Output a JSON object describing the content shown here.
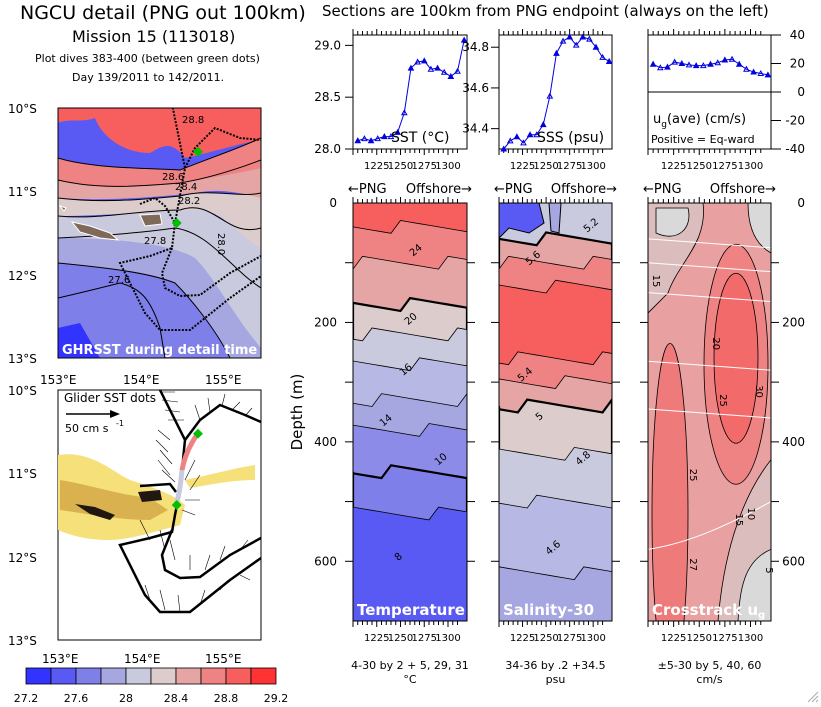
{
  "left_title": {
    "line1": "NGCU detail (PNG out 100km)",
    "line2": "Mission 15 (113018)",
    "line3": "Plot dives 383-400 (between green dots)",
    "line4": "Day 139/2011 to 142/2011."
  },
  "right_title": "Sections are 100km from PNG endpoint (always on the left)",
  "colors": {
    "blue_line": "#0000e0",
    "green_dot": "#00c000",
    "scale": [
      "#3333ff",
      "#5959f4",
      "#7f7fea",
      "#a6a6e0",
      "#c9cade",
      "#dccccc",
      "#e5a5a5",
      "#ef8282",
      "#f75e5e",
      "#ff3333"
    ]
  },
  "chart_data": [
    {
      "id": "sst-map",
      "type": "heatmap",
      "title": "GHRSST during detail time",
      "lat_ticks": [
        "10°S",
        "11°S",
        "12°S",
        "13°S"
      ],
      "lon_ticks": [
        "153°E",
        "154°E",
        "155°E"
      ],
      "contour_labels": [
        "28.8",
        "28.6",
        "28.4",
        "28.2",
        "28.0",
        "27.8",
        "27.6"
      ]
    },
    {
      "id": "glider-map",
      "type": "scatter",
      "title": "Glider SST dots",
      "scale_arrow_label": "50 cm s",
      "scale_arrow_exp": "-1",
      "lat_ticks": [
        "10°S",
        "11°S",
        "12°S",
        "13°S"
      ],
      "lon_ticks": [
        "153°E",
        "154°E",
        "155°E"
      ]
    },
    {
      "id": "colorbar",
      "type": "heatmap",
      "tick_labels": [
        "27.2",
        "27.6",
        "28",
        "28.4",
        "28.8",
        "29.2"
      ],
      "range": [
        27.2,
        29.2
      ],
      "step": 0.2
    },
    {
      "id": "sst-line",
      "type": "line",
      "label": "SST (°C)",
      "x": [
        1205,
        1212,
        1219,
        1226,
        1233,
        1240,
        1247,
        1254,
        1261,
        1268,
        1275,
        1282,
        1289,
        1296,
        1303,
        1310,
        1317
      ],
      "y": [
        28.08,
        28.1,
        28.08,
        28.1,
        28.12,
        28.12,
        28.16,
        28.35,
        28.78,
        28.84,
        28.85,
        28.77,
        28.78,
        28.74,
        28.7,
        28.75,
        29.05
      ],
      "ylim": [
        28.0,
        29.1
      ],
      "yticks": [
        "28.0",
        "28.5",
        "29.0"
      ],
      "xticks": [
        "1225",
        "1250",
        "1275",
        "1300"
      ]
    },
    {
      "id": "sss-line",
      "type": "line",
      "label": "SSS (psu)",
      "x": [
        1205,
        1212,
        1219,
        1226,
        1233,
        1240,
        1247,
        1254,
        1261,
        1268,
        1275,
        1282,
        1289,
        1296,
        1303,
        1310,
        1317
      ],
      "y": [
        34.3,
        34.34,
        34.36,
        34.33,
        34.37,
        34.37,
        34.42,
        34.56,
        34.77,
        34.83,
        34.85,
        34.81,
        34.85,
        34.84,
        34.8,
        34.75,
        34.73
      ],
      "ylim": [
        34.3,
        34.86
      ],
      "yticks": [
        "34.4",
        "34.6",
        "34.8"
      ],
      "xticks": [
        "1225",
        "1250",
        "1275",
        "1300"
      ]
    },
    {
      "id": "ug-line",
      "type": "line",
      "label": "u",
      "label_sub": "g",
      "label_rest": "(ave) (cm/s)",
      "note": "Positive = Eq-ward",
      "x": [
        1205,
        1212,
        1219,
        1226,
        1233,
        1240,
        1247,
        1254,
        1261,
        1268,
        1275,
        1282,
        1289,
        1296,
        1303,
        1310,
        1317
      ],
      "y": [
        19.5,
        17,
        17.5,
        21,
        20,
        19,
        18.5,
        18.5,
        19.5,
        20.5,
        22.5,
        23,
        19.5,
        16,
        14,
        13,
        12
      ],
      "ylim": [
        -40,
        40
      ],
      "yticks": [
        "40",
        "20",
        "0",
        "-20",
        "-40"
      ],
      "xticks": [
        "1225",
        "1250",
        "1275",
        "1300"
      ]
    },
    {
      "id": "temp-section",
      "type": "heatmap",
      "label": "Temperature",
      "xdir_left": "←PNG",
      "xdir_right": "Offshore→",
      "ylabel": "Depth (m)",
      "yticks": [
        "0",
        "200",
        "400",
        "600"
      ],
      "ylim": [
        0,
        700
      ],
      "xticks": [
        "1225",
        "1250",
        "1275",
        "1300"
      ],
      "contour_labels": [
        "24",
        "20",
        "16",
        "14",
        "10",
        "8"
      ],
      "contour_spec": "4-30 by 2 + 5, 29, 31",
      "units": "°C"
    },
    {
      "id": "salinity-section",
      "type": "heatmap",
      "label": "Salinity-30",
      "xdir_left": "←PNG",
      "xdir_right": "Offshore→",
      "xticks": [
        "1225",
        "1250",
        "1275",
        "1300"
      ],
      "contour_labels": [
        "5.2",
        "5.6",
        "5.4",
        "5",
        "4.8",
        "4.6"
      ],
      "contour_spec": "34-36 by .2 +34.5",
      "units": "psu"
    },
    {
      "id": "ug-section",
      "type": "heatmap",
      "label": "Crosstrack u",
      "label_sub": "g",
      "xdir_left": "←PNG",
      "xdir_right": "Offshore→",
      "yticks": [
        "0",
        "200",
        "400",
        "600"
      ],
      "xticks": [
        "1225",
        "1250",
        "1275",
        "1300"
      ],
      "contour_labels": [
        "15",
        "20",
        "30",
        "25",
        "20",
        "25",
        "15",
        "10",
        "5",
        "27"
      ],
      "contour_spec": "±5-30 by 5, 40, 60",
      "units": "cm/s"
    }
  ]
}
